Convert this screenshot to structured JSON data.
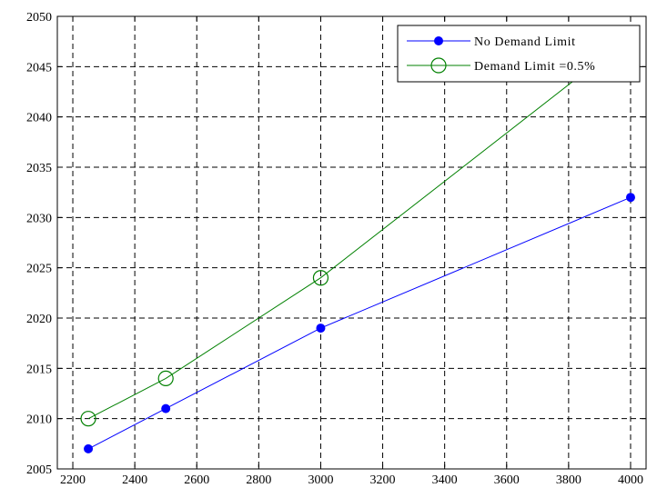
{
  "chart_data": {
    "type": "line",
    "title": "",
    "xlabel": "",
    "ylabel": "",
    "xlim": [
      2150,
      4050
    ],
    "ylim": [
      2005,
      2050
    ],
    "xticks": [
      2200,
      2400,
      2600,
      2800,
      3000,
      3200,
      3400,
      3600,
      3800,
      4000
    ],
    "yticks": [
      2005,
      2010,
      2015,
      2020,
      2025,
      2030,
      2035,
      2040,
      2045,
      2050
    ],
    "grid": true,
    "legend": "top-right",
    "series": [
      {
        "name": "No Demand Limit",
        "color": "#0000ff",
        "marker": "filled-circle",
        "x": [
          2250,
          2500,
          3000,
          4000
        ],
        "y": [
          2007,
          2011,
          2019,
          2032
        ]
      },
      {
        "name": "Demand Limit =0.5%",
        "color": "#008000",
        "marker": "open-circle",
        "x": [
          2250,
          2500,
          3000,
          4000
        ],
        "y": [
          2010,
          2014,
          2024,
          2048
        ]
      }
    ]
  }
}
